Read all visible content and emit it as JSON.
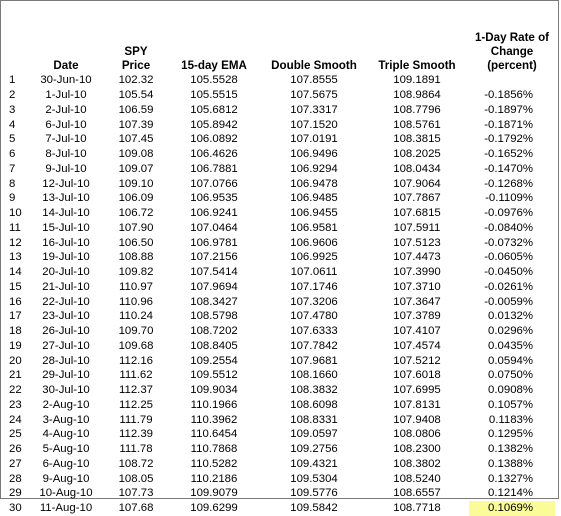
{
  "table": {
    "headers": {
      "date": "Date",
      "price_line1": "SPY",
      "price_line2": "Price",
      "ema": "15-day EMA",
      "double": "Double Smooth",
      "triple": "Triple Smooth",
      "roc_line1": "1-Day Rate of",
      "roc_line2": "Change (percent)"
    },
    "highlight_color": "#fbfb9a",
    "highlighted_row": 30,
    "rows": [
      {
        "idx": "1",
        "date": "30-Jun-10",
        "price": "102.32",
        "ema": "105.5528",
        "double": "107.8555",
        "triple": "109.1891",
        "roc": ""
      },
      {
        "idx": "2",
        "date": "1-Jul-10",
        "price": "105.54",
        "ema": "105.5515",
        "double": "107.5675",
        "triple": "108.9864",
        "roc": "-0.1856%"
      },
      {
        "idx": "3",
        "date": "2-Jul-10",
        "price": "106.59",
        "ema": "105.6812",
        "double": "107.3317",
        "triple": "108.7796",
        "roc": "-0.1897%"
      },
      {
        "idx": "4",
        "date": "6-Jul-10",
        "price": "107.39",
        "ema": "105.8942",
        "double": "107.1520",
        "triple": "108.5761",
        "roc": "-0.1871%"
      },
      {
        "idx": "5",
        "date": "7-Jul-10",
        "price": "107.45",
        "ema": "106.0892",
        "double": "107.0191",
        "triple": "108.3815",
        "roc": "-0.1792%"
      },
      {
        "idx": "6",
        "date": "8-Jul-10",
        "price": "109.08",
        "ema": "106.4626",
        "double": "106.9496",
        "triple": "108.2025",
        "roc": "-0.1652%"
      },
      {
        "idx": "7",
        "date": "9-Jul-10",
        "price": "109.07",
        "ema": "106.7881",
        "double": "106.9294",
        "triple": "108.0434",
        "roc": "-0.1470%"
      },
      {
        "idx": "8",
        "date": "12-Jul-10",
        "price": "109.10",
        "ema": "107.0766",
        "double": "106.9478",
        "triple": "107.9064",
        "roc": "-0.1268%"
      },
      {
        "idx": "9",
        "date": "13-Jul-10",
        "price": "106.09",
        "ema": "106.9535",
        "double": "106.9485",
        "triple": "107.7867",
        "roc": "-0.1109%"
      },
      {
        "idx": "10",
        "date": "14-Jul-10",
        "price": "106.72",
        "ema": "106.9241",
        "double": "106.9455",
        "triple": "107.6815",
        "roc": "-0.0976%"
      },
      {
        "idx": "11",
        "date": "15-Jul-10",
        "price": "107.90",
        "ema": "107.0464",
        "double": "106.9581",
        "triple": "107.5911",
        "roc": "-0.0840%"
      },
      {
        "idx": "12",
        "date": "16-Jul-10",
        "price": "106.50",
        "ema": "106.9781",
        "double": "106.9606",
        "triple": "107.5123",
        "roc": "-0.0732%"
      },
      {
        "idx": "13",
        "date": "19-Jul-10",
        "price": "108.88",
        "ema": "107.2156",
        "double": "106.9925",
        "triple": "107.4473",
        "roc": "-0.0605%"
      },
      {
        "idx": "14",
        "date": "20-Jul-10",
        "price": "109.82",
        "ema": "107.5414",
        "double": "107.0611",
        "triple": "107.3990",
        "roc": "-0.0450%"
      },
      {
        "idx": "15",
        "date": "21-Jul-10",
        "price": "110.97",
        "ema": "107.9694",
        "double": "107.1746",
        "triple": "107.3710",
        "roc": "-0.0261%"
      },
      {
        "idx": "16",
        "date": "22-Jul-10",
        "price": "110.96",
        "ema": "108.3427",
        "double": "107.3206",
        "triple": "107.3647",
        "roc": "-0.0059%"
      },
      {
        "idx": "17",
        "date": "23-Jul-10",
        "price": "110.24",
        "ema": "108.5798",
        "double": "107.4780",
        "triple": "107.3789",
        "roc": "0.0132%"
      },
      {
        "idx": "18",
        "date": "26-Jul-10",
        "price": "109.70",
        "ema": "108.7202",
        "double": "107.6333",
        "triple": "107.4107",
        "roc": "0.0296%"
      },
      {
        "idx": "19",
        "date": "27-Jul-10",
        "price": "109.68",
        "ema": "108.8405",
        "double": "107.7842",
        "triple": "107.4574",
        "roc": "0.0435%"
      },
      {
        "idx": "20",
        "date": "28-Jul-10",
        "price": "112.16",
        "ema": "109.2554",
        "double": "107.9681",
        "triple": "107.5212",
        "roc": "0.0594%"
      },
      {
        "idx": "21",
        "date": "29-Jul-10",
        "price": "111.62",
        "ema": "109.5512",
        "double": "108.1660",
        "triple": "107.6018",
        "roc": "0.0750%"
      },
      {
        "idx": "22",
        "date": "30-Jul-10",
        "price": "112.37",
        "ema": "109.9034",
        "double": "108.3832",
        "triple": "107.6995",
        "roc": "0.0908%"
      },
      {
        "idx": "23",
        "date": "2-Aug-10",
        "price": "112.25",
        "ema": "110.1966",
        "double": "108.6098",
        "triple": "107.8131",
        "roc": "0.1057%"
      },
      {
        "idx": "24",
        "date": "3-Aug-10",
        "price": "111.79",
        "ema": "110.3962",
        "double": "108.8331",
        "triple": "107.9408",
        "roc": "0.1183%"
      },
      {
        "idx": "25",
        "date": "4-Aug-10",
        "price": "112.39",
        "ema": "110.6454",
        "double": "109.0597",
        "triple": "108.0806",
        "roc": "0.1295%"
      },
      {
        "idx": "26",
        "date": "5-Aug-10",
        "price": "111.78",
        "ema": "110.7868",
        "double": "109.2756",
        "triple": "108.2300",
        "roc": "0.1382%"
      },
      {
        "idx": "27",
        "date": "6-Aug-10",
        "price": "108.72",
        "ema": "110.5282",
        "double": "109.4321",
        "triple": "108.3802",
        "roc": "0.1388%"
      },
      {
        "idx": "28",
        "date": "9-Aug-10",
        "price": "108.05",
        "ema": "110.2186",
        "double": "109.5304",
        "triple": "108.5240",
        "roc": "0.1327%"
      },
      {
        "idx": "29",
        "date": "10-Aug-10",
        "price": "107.73",
        "ema": "109.9079",
        "double": "109.5776",
        "triple": "108.6557",
        "roc": "0.1214%"
      },
      {
        "idx": "30",
        "date": "11-Aug-10",
        "price": "107.68",
        "ema": "109.6299",
        "double": "109.5842",
        "triple": "108.7718",
        "roc": "0.1069%"
      }
    ]
  }
}
